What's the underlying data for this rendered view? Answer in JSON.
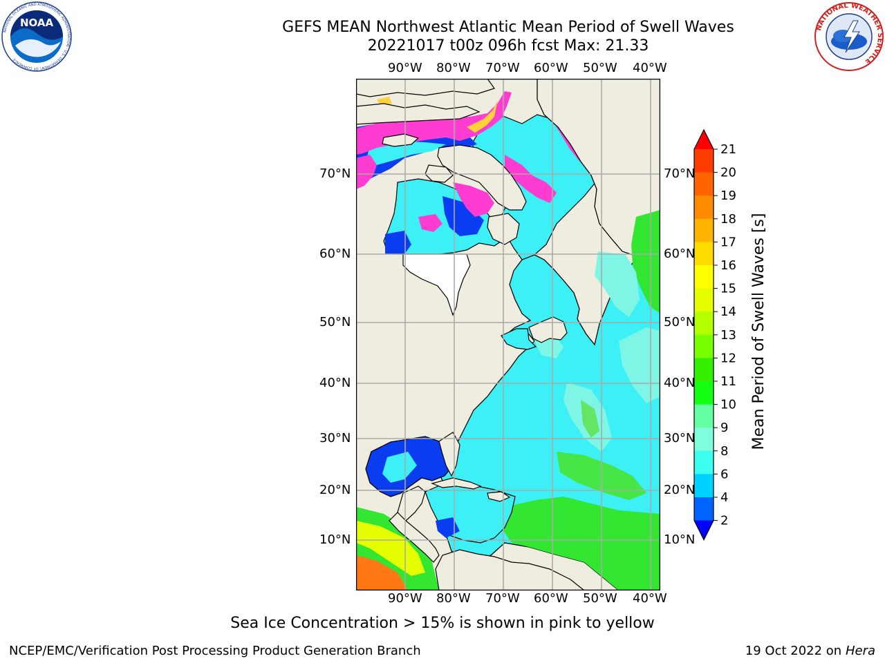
{
  "title_line1": "GEFS MEAN Northwest Atlantic Mean Period of Swell Waves",
  "title_line2": "20221017 t00z 096h fcst   Max: 21.33",
  "logo_left_text": "NOAA",
  "logo_left_ring": "NATIONAL OCEANIC AND ATMOSPHERIC ADMINISTRATION · U.S. DEPARTMENT OF COMMERCE",
  "logo_right_ring": "NATIONAL WEATHER SERVICE",
  "lon_labels": [
    "90°W",
    "80°W",
    "70°W",
    "60°W",
    "50°W",
    "40°W"
  ],
  "lat_labels_left": [
    "70°N",
    "60°N",
    "50°N",
    "40°N",
    "30°N",
    "20°N",
    "10°N"
  ],
  "lat_labels_right": [
    "70°N",
    "60°N",
    "50°N",
    "40°N",
    "30°N",
    "20°N",
    "10°N"
  ],
  "colorbar": {
    "label": "Mean Period of Swell Waves [s]",
    "ticks": [
      "21",
      "20",
      "19",
      "18",
      "17",
      "16",
      "15",
      "14",
      "13",
      "12",
      "11",
      "10",
      "9",
      "8",
      "6",
      "4",
      "2"
    ],
    "colors": [
      "#ff0000",
      "#ff3c00",
      "#ff6400",
      "#ff8c00",
      "#ffb400",
      "#ffdc00",
      "#ffff00",
      "#e6ff00",
      "#b4ff00",
      "#78ff00",
      "#32f000",
      "#14ff14",
      "#64ffa0",
      "#80ffdc",
      "#3cfff0",
      "#00d2ff",
      "#0064ff",
      "#0000ff"
    ]
  },
  "note": "Sea Ice Concentration > 15% is shown in pink to yellow",
  "footer_left": "NCEP/EMC/Verification Post Processing Product Generation Branch",
  "footer_right_prefix": "19 Oct 2022 on ",
  "footer_right_host": "Hera",
  "palette": {
    "land": "#eeeddf",
    "ocean_cyan": "#3cf0f5",
    "ocean_light": "#7ff5e6",
    "ocean_blue": "#0a3cf0",
    "ocean_green": "#32e632",
    "swell_orange": "#ff7814",
    "ice_pink": "#ff3cd2",
    "ice_yellow": "#ffd23c"
  }
}
